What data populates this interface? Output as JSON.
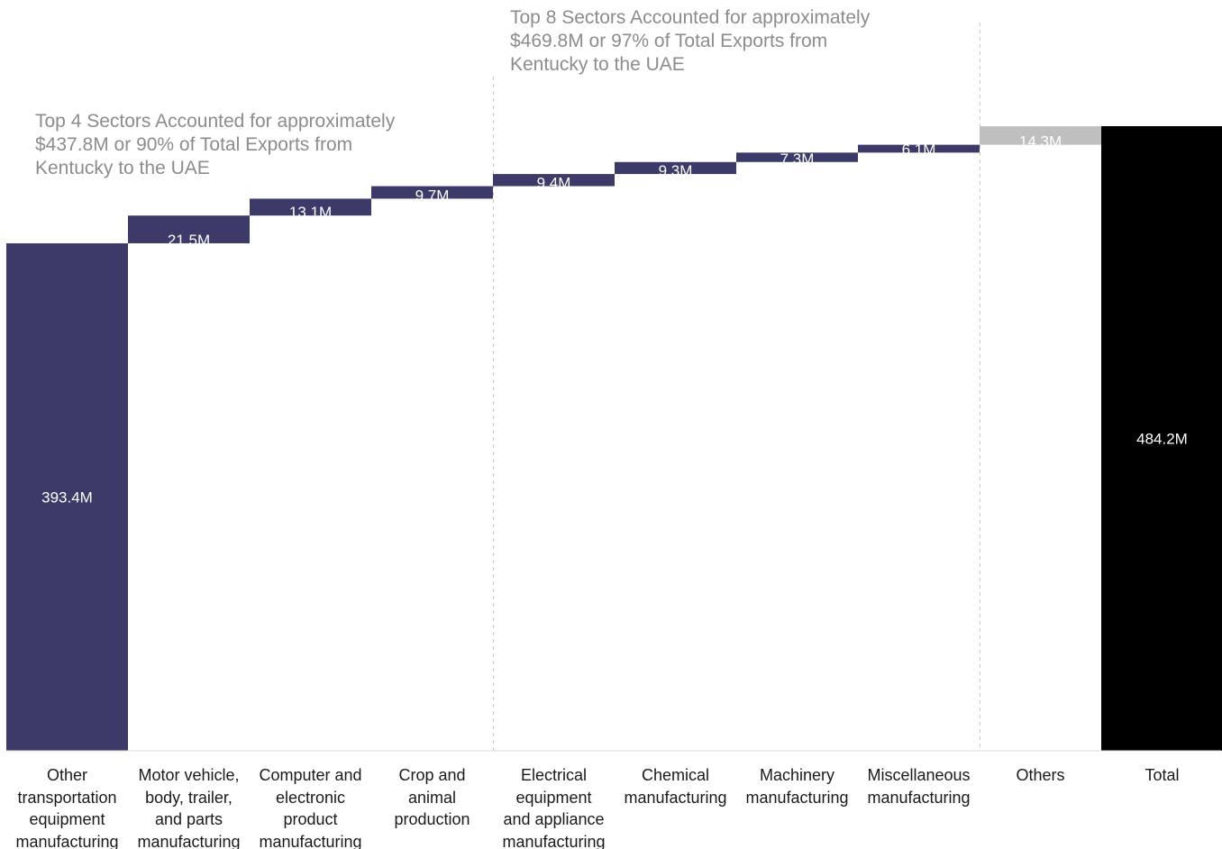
{
  "chart_data": {
    "type": "bar",
    "subtype": "waterfall",
    "title": "",
    "xlabel": "",
    "ylabel": "",
    "ylim": [
      0,
      484.2
    ],
    "grid": false,
    "legend": "none",
    "categories": [
      "Other\ntransportation\nequipment\nmanufacturing",
      "Motor vehicle,\nbody, trailer,\nand parts\nmanufacturing",
      "Computer and\nelectronic\nproduct\nmanufacturing",
      "Crop and\nanimal\nproduction",
      "Electrical\nequipment\nand appliance\nmanufacturing",
      "Chemical\nmanufacturing",
      "Machinery\nmanufacturing",
      "Miscellaneous\nmanufacturing",
      "Others",
      "Total"
    ],
    "values": [
      393.4,
      21.5,
      13.1,
      9.7,
      9.4,
      9.3,
      7.3,
      6.1,
      14.3,
      484.2
    ],
    "value_labels": [
      "393.4M",
      "21.5M",
      "13.1M",
      "9.7M",
      "9.4M",
      "9.3M",
      "7.3M",
      "6.1M",
      "14.3M",
      "484.2M"
    ],
    "bar_roles": [
      "start",
      "increase",
      "increase",
      "increase",
      "increase",
      "increase",
      "increase",
      "increase",
      "increase",
      "total"
    ],
    "unit": "M",
    "colors": {
      "sector": "#3b3a68",
      "others": "#bfbfbf",
      "total": "#000000",
      "label": "#ffffff",
      "annotation": "#8c8c8c",
      "divider": "#c8c8c8"
    },
    "annotations": [
      {
        "text": "Top 4 Sectors Accounted for approximately\n$437.8M or 90% of Total Exports from\nKentucky to the UAE",
        "after_category_index": 3
      },
      {
        "text": "Top 8 Sectors Accounted for approximately\n$469.8M or 97% of Total Exports from\nKentucky to the UAE",
        "after_category_index": 7
      }
    ]
  }
}
